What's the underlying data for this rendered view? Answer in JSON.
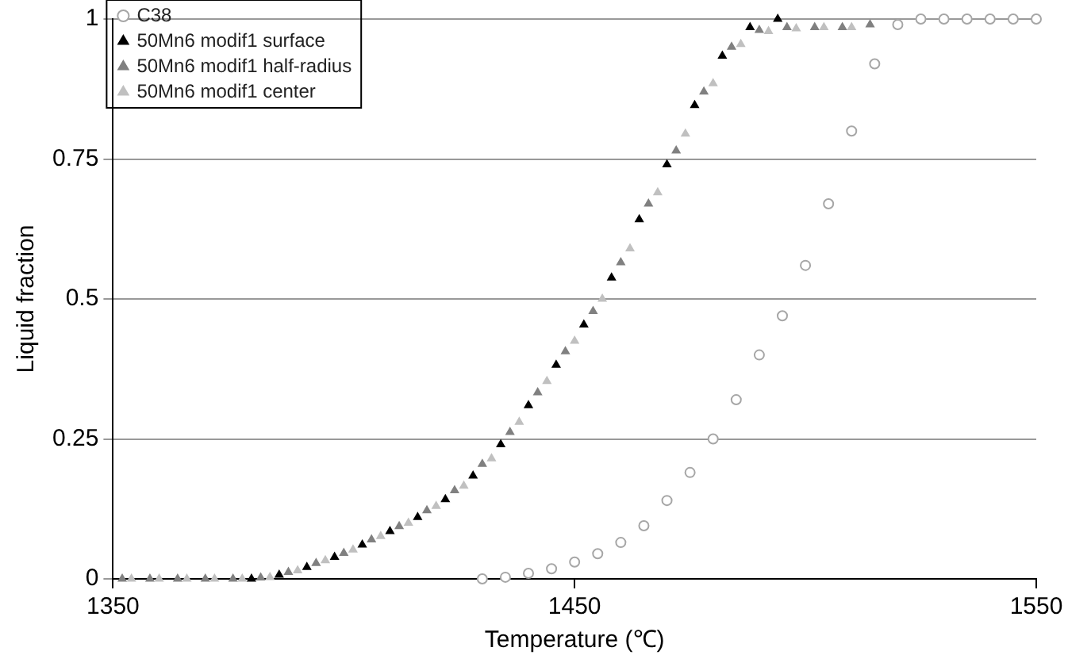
{
  "chart_data": {
    "type": "scatter",
    "xlabel": "Temperature (℃)",
    "ylabel": "Liquid fraction",
    "xlim": [
      1350,
      1550
    ],
    "xticks": [
      1350,
      1450,
      1550
    ],
    "ylim": [
      0,
      1
    ],
    "yticks": [
      0,
      0.25,
      0.5,
      0.75,
      1
    ],
    "grid": "y",
    "legend": "top left",
    "line_style": "none",
    "series": [
      {
        "name": "C38",
        "color": "#a6a6a6",
        "marker": "circle",
        "x": [
          1430,
          1435,
          1440,
          1445,
          1450,
          1455,
          1460,
          1465,
          1470,
          1475,
          1480,
          1485,
          1490,
          1495,
          1500,
          1505,
          1510,
          1515,
          1520,
          1525,
          1530,
          1535,
          1540,
          1545,
          1550
        ],
        "values": [
          0,
          0.003,
          0.01,
          0.018,
          0.03,
          0.045,
          0.065,
          0.095,
          0.14,
          0.19,
          0.25,
          0.32,
          0.4,
          0.47,
          0.56,
          0.67,
          0.8,
          0.92,
          0.99,
          1,
          1,
          1,
          1,
          1,
          1
        ]
      },
      {
        "name": "50Mn6 modif1 surface",
        "color": "#000000",
        "marker": "triangle",
        "x": [
          1380,
          1386,
          1392,
          1398,
          1404,
          1410,
          1416,
          1422,
          1428,
          1434,
          1440,
          1446,
          1452,
          1458,
          1464,
          1470,
          1476,
          1482,
          1488,
          1494
        ],
        "values": [
          0,
          0.007,
          0.021,
          0.039,
          0.061,
          0.085,
          0.11,
          0.142,
          0.184,
          0.24,
          0.31,
          0.382,
          0.454,
          0.538,
          0.642,
          0.74,
          0.846,
          0.934,
          0.985,
          1
        ]
      },
      {
        "name": "50Mn6 modif1 half-radius",
        "color": "#808080",
        "marker": "triangle",
        "x": [
          1352,
          1358,
          1364,
          1370,
          1376,
          1382,
          1388,
          1394,
          1400,
          1406,
          1412,
          1418,
          1424,
          1430,
          1436,
          1442,
          1448,
          1454,
          1460,
          1466,
          1472,
          1478,
          1484,
          1490,
          1496,
          1502,
          1508,
          1514
        ],
        "values": [
          0,
          0,
          0,
          0,
          0,
          0.002,
          0.012,
          0.028,
          0.046,
          0.07,
          0.094,
          0.122,
          0.158,
          0.205,
          0.262,
          0.333,
          0.406,
          0.478,
          0.565,
          0.67,
          0.765,
          0.87,
          0.95,
          0.98,
          0.985,
          0.985,
          0.985,
          0.99
        ]
      },
      {
        "name": "50Mn6 modif1 center",
        "color": "#c0c0c0",
        "marker": "triangle",
        "x": [
          1354,
          1360,
          1366,
          1372,
          1378,
          1384,
          1390,
          1396,
          1402,
          1408,
          1414,
          1420,
          1426,
          1432,
          1438,
          1444,
          1450,
          1456,
          1462,
          1468,
          1474,
          1480,
          1486,
          1492,
          1498,
          1504,
          1510
        ],
        "values": [
          0,
          0,
          0,
          0,
          0,
          0.003,
          0.015,
          0.033,
          0.052,
          0.076,
          0.1,
          0.13,
          0.166,
          0.215,
          0.28,
          0.353,
          0.425,
          0.5,
          0.59,
          0.69,
          0.795,
          0.885,
          0.955,
          0.978,
          0.983,
          0.985,
          0.985
        ]
      }
    ]
  }
}
